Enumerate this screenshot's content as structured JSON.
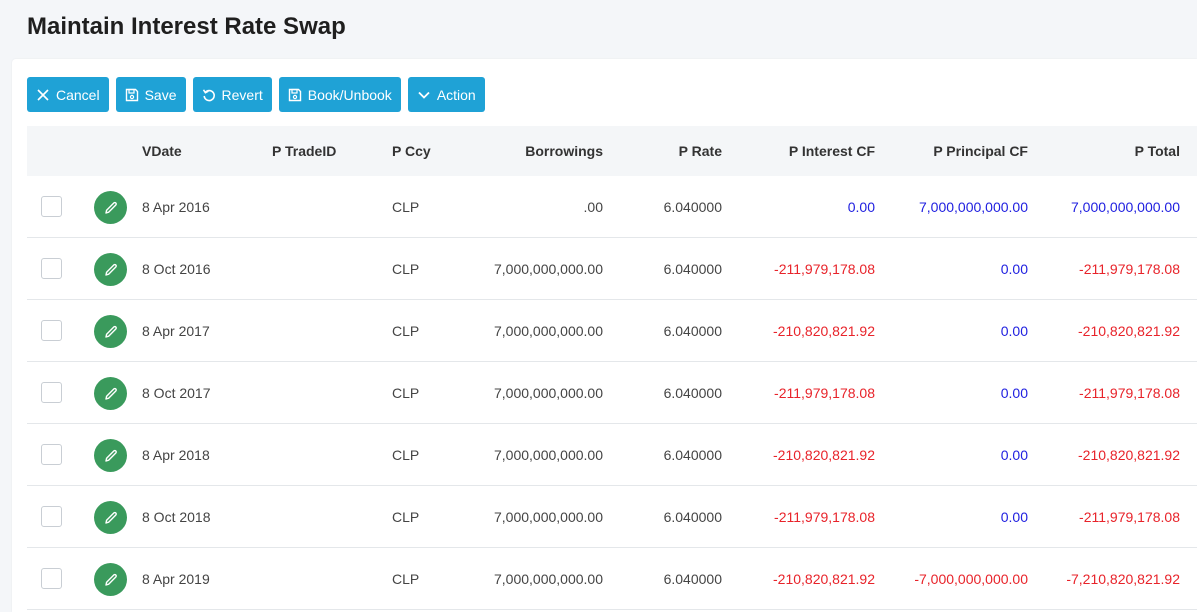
{
  "page": {
    "title": "Maintain Interest Rate Swap"
  },
  "toolbar": {
    "cancel_label": "Cancel",
    "save_label": "Save",
    "revert_label": "Revert",
    "book_label": "Book/Unbook",
    "action_label": "Action",
    "button_color": "#1fa2d6"
  },
  "table": {
    "columns": {
      "vdate": "VDate",
      "trade_id": "P TradeID",
      "ccy": "P Ccy",
      "borrowings": "Borrowings",
      "rate": "P Rate",
      "interest_cf": "P Interest CF",
      "principal_cf": "P Principal CF",
      "total": "P Total"
    },
    "rows": [
      {
        "vdate": "8 Apr 2016",
        "trade_id": "",
        "ccy": "CLP",
        "borrowings": ".00",
        "rate": "6.040000",
        "interest_cf": "0.00",
        "principal_cf": "7,000,000,000.00",
        "total": "7,000,000,000.00"
      },
      {
        "vdate": "8 Oct 2016",
        "trade_id": "",
        "ccy": "CLP",
        "borrowings": "7,000,000,000.00",
        "rate": "6.040000",
        "interest_cf": "-211,979,178.08",
        "principal_cf": "0.00",
        "total": "-211,979,178.08"
      },
      {
        "vdate": "8 Apr 2017",
        "trade_id": "",
        "ccy": "CLP",
        "borrowings": "7,000,000,000.00",
        "rate": "6.040000",
        "interest_cf": "-210,820,821.92",
        "principal_cf": "0.00",
        "total": "-210,820,821.92"
      },
      {
        "vdate": "8 Oct 2017",
        "trade_id": "",
        "ccy": "CLP",
        "borrowings": "7,000,000,000.00",
        "rate": "6.040000",
        "interest_cf": "-211,979,178.08",
        "principal_cf": "0.00",
        "total": "-211,979,178.08"
      },
      {
        "vdate": "8 Apr 2018",
        "trade_id": "",
        "ccy": "CLP",
        "borrowings": "7,000,000,000.00",
        "rate": "6.040000",
        "interest_cf": "-210,820,821.92",
        "principal_cf": "0.00",
        "total": "-210,820,821.92"
      },
      {
        "vdate": "8 Oct 2018",
        "trade_id": "",
        "ccy": "CLP",
        "borrowings": "7,000,000,000.00",
        "rate": "6.040000",
        "interest_cf": "-211,979,178.08",
        "principal_cf": "0.00",
        "total": "-211,979,178.08"
      },
      {
        "vdate": "8 Apr 2019",
        "trade_id": "",
        "ccy": "CLP",
        "borrowings": "7,000,000,000.00",
        "rate": "6.040000",
        "interest_cf": "-210,820,821.92",
        "principal_cf": "-7,000,000,000.00",
        "total": "-7,210,820,821.92"
      }
    ]
  },
  "colors": {
    "negative": "#e8232a",
    "positive": "#2020e0",
    "edit_button": "#3a9a5c"
  },
  "icons": {
    "cancel": "close-icon",
    "save": "floppy-disk-icon",
    "revert": "undo-icon",
    "book": "floppy-disk-icon",
    "action": "chevron-down-icon",
    "row_edit": "pencil-icon"
  }
}
